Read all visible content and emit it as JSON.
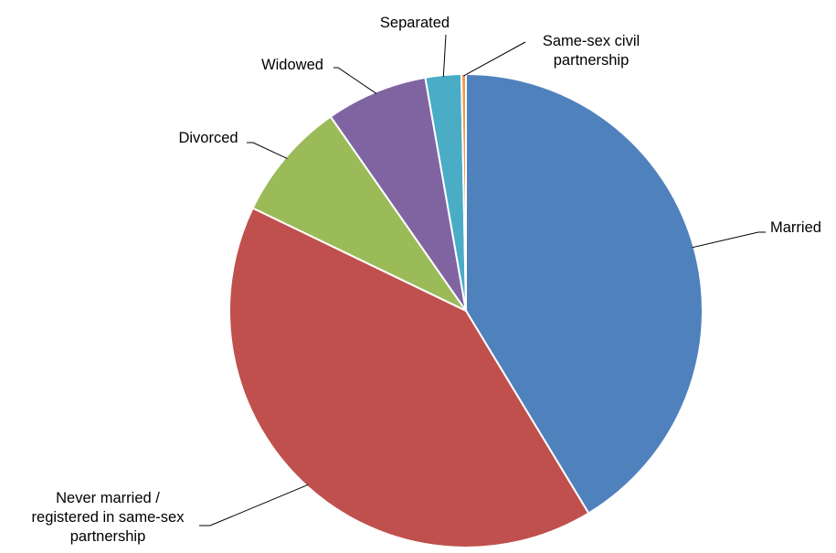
{
  "chart_data": {
    "type": "pie",
    "title": "",
    "slices": [
      {
        "name": "Married",
        "value": 40.5,
        "color": "#4F81BD",
        "label_lines": [
          "Married"
        ]
      },
      {
        "name": "Never married / registered in same-sex partnership",
        "value": 40.0,
        "color": "#C0504D",
        "label_lines": [
          "Never married /",
          "registered in same-sex",
          "partnership"
        ]
      },
      {
        "name": "Divorced",
        "value": 8.0,
        "color": "#9BBB59",
        "label_lines": [
          "Divorced"
        ]
      },
      {
        "name": "Widowed",
        "value": 6.8,
        "color": "#8064A2",
        "label_lines": [
          "Widowed"
        ]
      },
      {
        "name": "Separated",
        "value": 2.4,
        "color": "#4BACC6",
        "label_lines": [
          "Separated"
        ]
      },
      {
        "name": "Same-sex civil partnership",
        "value": 0.3,
        "color": "#F79646",
        "label_lines": [
          "Same-sex civil",
          "partnership"
        ]
      }
    ],
    "legend": "none",
    "start_angle": "12 o'clock",
    "direction": "clockwise"
  }
}
